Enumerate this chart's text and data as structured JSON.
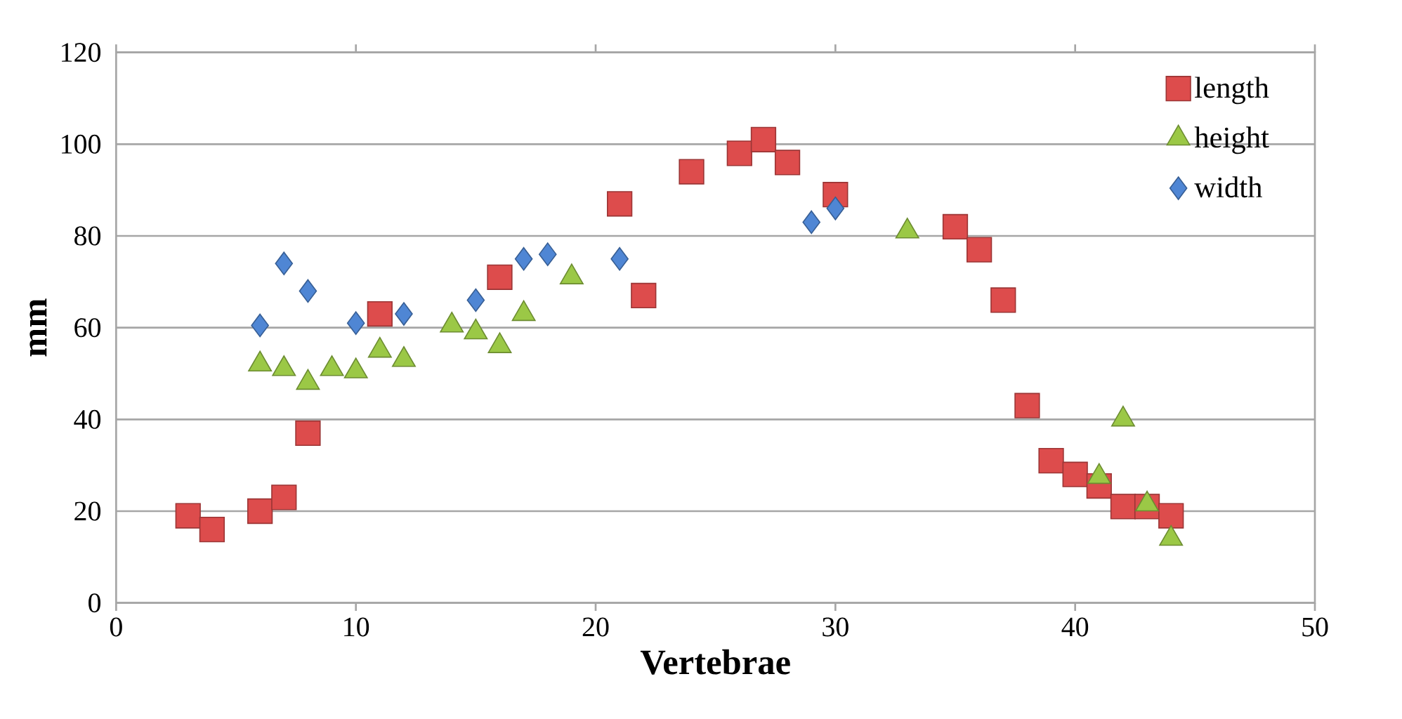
{
  "chart_data": {
    "type": "scatter",
    "xlabel": "Vertebrae",
    "ylabel": "mm",
    "xlim": [
      0,
      50
    ],
    "ylim": [
      0,
      120
    ],
    "xticks": [
      0,
      10,
      20,
      30,
      40,
      50
    ],
    "yticks": [
      0,
      20,
      40,
      60,
      80,
      100,
      120
    ],
    "grid": "y",
    "legend": "top right",
    "series": [
      {
        "name": "length",
        "color": "#dd4c4c",
        "marker": "square",
        "x": [
          3,
          4,
          6,
          7,
          8,
          11,
          16,
          21,
          22,
          24,
          26,
          27,
          28,
          30,
          35,
          36,
          37,
          38,
          39,
          40,
          41,
          42,
          43,
          44
        ],
        "values": [
          19,
          16,
          20,
          23,
          37,
          63,
          71,
          87,
          67,
          94,
          98,
          101,
          96,
          89,
          82,
          77,
          66,
          43,
          31,
          28,
          25.5,
          21,
          21,
          19
        ]
      },
      {
        "name": "height",
        "color": "#9bc846",
        "marker": "triangle",
        "x": [
          6,
          7,
          8,
          9,
          10,
          11,
          12,
          14,
          15,
          16,
          17,
          19,
          33,
          41,
          42,
          43,
          44
        ],
        "values": [
          52,
          51,
          48,
          51,
          50.5,
          55,
          53,
          60.5,
          59,
          56,
          63,
          71,
          81,
          27.5,
          40,
          21.5,
          14
        ]
      },
      {
        "name": "width",
        "color": "#4f86d4",
        "marker": "diamond",
        "x": [
          6,
          7,
          8,
          10,
          12,
          15,
          17,
          18,
          21,
          29,
          30
        ],
        "values": [
          60.5,
          74,
          68,
          61,
          63,
          66,
          75,
          76,
          75,
          83,
          86
        ]
      }
    ]
  }
}
